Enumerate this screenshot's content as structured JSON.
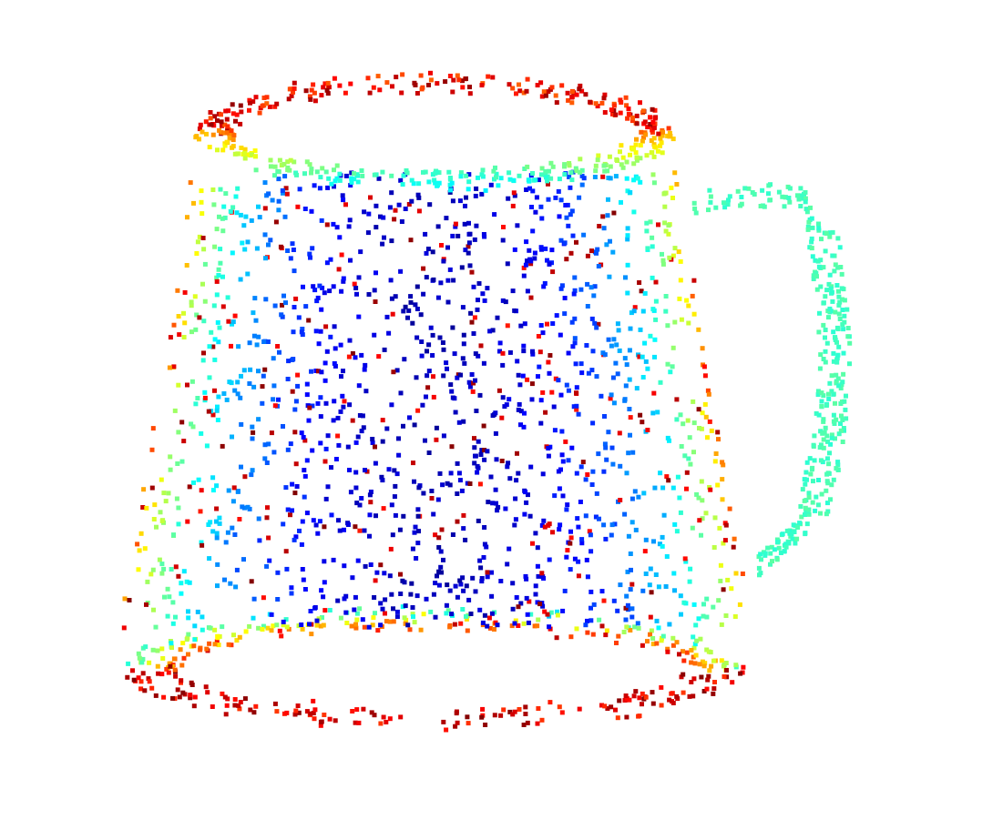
{
  "figure": {
    "subject": "mug",
    "rendering": "3D point cloud",
    "colormap": "jet",
    "colormap_stops": [
      "#00008f",
      "#0000ff",
      "#0080ff",
      "#00ffff",
      "#80ff80",
      "#ffff00",
      "#ff8000",
      "#ff0000",
      "#800000"
    ],
    "background": "#ffffff",
    "marker": "square",
    "parts": [
      "body",
      "rim",
      "base",
      "handle"
    ]
  }
}
